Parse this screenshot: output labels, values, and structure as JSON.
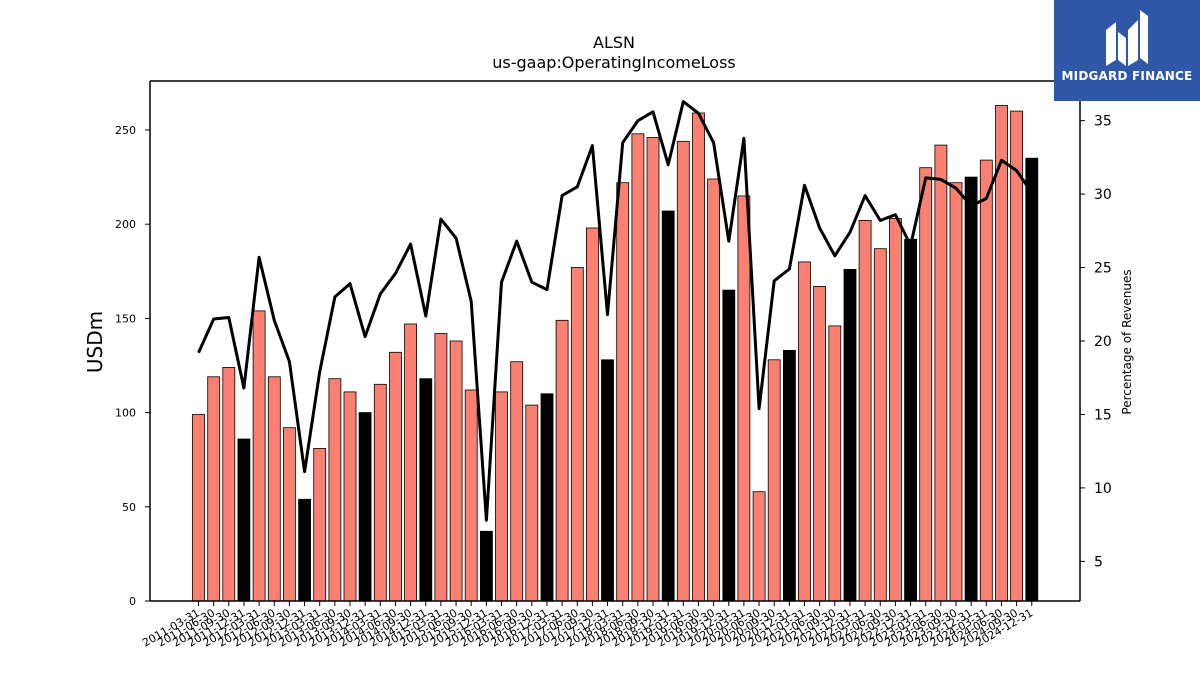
{
  "chart_data": {
    "type": "bar",
    "title": "ALSN",
    "subtitle": "us-gaap:OperatingIncomeLoss",
    "ylabel": "USDm",
    "y2label": "Percentage of Revenues",
    "ylim": [
      0,
      276
    ],
    "y2lim": [
      2.3,
      37.7
    ],
    "yticks": [
      0,
      50,
      100,
      150,
      200,
      250
    ],
    "y2ticks": [
      5,
      10,
      15,
      20,
      25,
      30,
      35
    ],
    "grid": false,
    "x_tick_labels": [
      "2011-03-31",
      "2011-06-30",
      "2011-09-30",
      "2011-12-31",
      "2012-03-31",
      "2012-06-30",
      "2012-09-30",
      "2012-12-31",
      "2013-03-31",
      "2013-06-30",
      "2013-09-30",
      "2013-12-31",
      "2014-03-31",
      "2014-06-30",
      "2014-09-30",
      "2014-12-31",
      "2015-03-31",
      "2015-06-30",
      "2015-09-30",
      "2015-12-31",
      "2016-03-31",
      "2016-06-30",
      "2016-09-30",
      "2016-12-31",
      "2017-03-31",
      "2017-06-30",
      "2017-09-30",
      "2017-12-31",
      "2018-03-31",
      "2018-06-30",
      "2018-09-30",
      "2018-12-31",
      "2019-03-31",
      "2019-06-30",
      "2019-09-30",
      "2019-12-31",
      "2020-03-31",
      "2020-06-30",
      "2020-09-30",
      "2020-12-31",
      "2021-03-31",
      "2021-06-30",
      "2021-09-30",
      "2021-12-31",
      "2022-03-31",
      "2022-06-30",
      "2022-09-30",
      "2022-12-31",
      "2023-03-31",
      "2023-06-30",
      "2023-09-30",
      "2023-12-31",
      "2024-03-31",
      "2024-06-30",
      "2024-09-30",
      "2024-12-31"
    ],
    "series": [
      {
        "kind": "bar",
        "values": [
          99,
          119,
          124,
          86,
          154,
          119,
          92,
          54,
          81,
          118,
          111,
          100,
          115,
          132,
          147,
          118,
          142,
          138,
          112,
          37,
          111,
          127,
          104,
          110,
          149,
          177,
          198,
          128,
          222,
          248,
          246,
          207,
          244,
          259,
          224,
          165,
          215,
          58,
          128,
          133,
          180,
          167,
          146,
          176,
          202,
          187,
          203,
          192,
          230,
          242,
          222,
          225,
          234,
          263,
          260,
          235
        ],
        "colors": {
          "quarter": "#fa8072",
          "year_end": "#000000"
        }
      },
      {
        "kind": "line",
        "axis": "right",
        "color": "#000000",
        "values": [
          19.2,
          21.5,
          21.6,
          16.8,
          25.7,
          21.4,
          18.6,
          11.1,
          17.9,
          23.0,
          23.9,
          20.3,
          23.2,
          24.6,
          26.6,
          21.7,
          28.3,
          27.0,
          22.7,
          7.8,
          24.0,
          26.8,
          24.0,
          23.5,
          29.9,
          30.5,
          33.3,
          21.8,
          33.5,
          35.0,
          35.6,
          32.0,
          36.3,
          35.5,
          33.5,
          26.8,
          33.8,
          15.4,
          24.1,
          24.9,
          30.6,
          27.7,
          25.8,
          27.4,
          29.9,
          28.2,
          28.6,
          26.5,
          31.1,
          31.0,
          30.4,
          29.2,
          29.7,
          32.3,
          31.6,
          30.1
        ]
      }
    ]
  },
  "logo": {
    "brand_text": "MIDGARD FINANCE",
    "bg_color": "#2f58a8"
  }
}
